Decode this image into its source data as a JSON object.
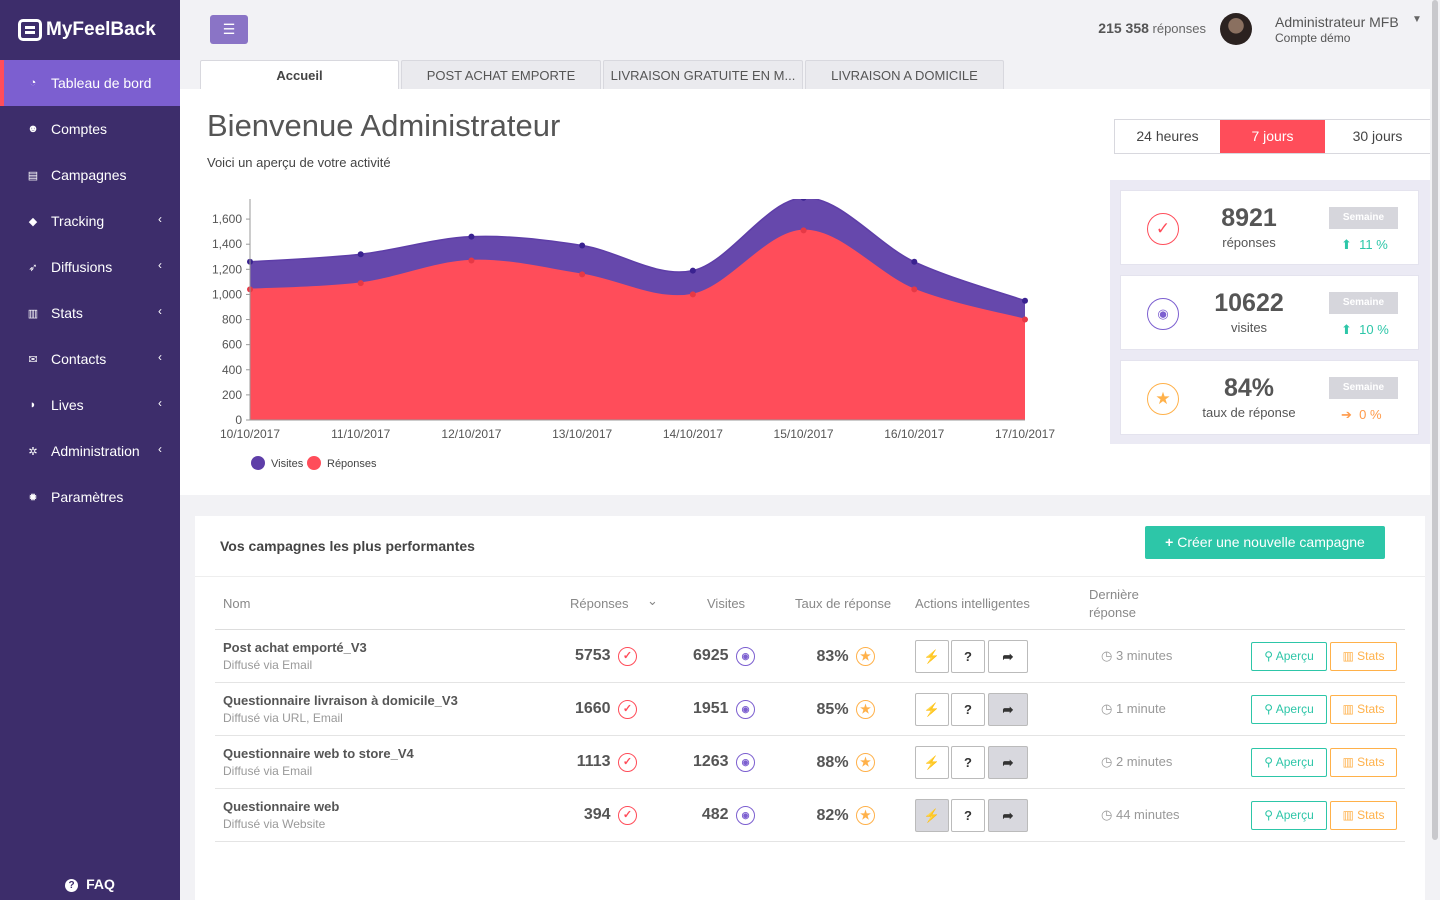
{
  "app": {
    "name": "MyFeelBack"
  },
  "sidebar": {
    "items": [
      {
        "label": "Tableau de bord",
        "icon": "dashboard-icon",
        "active": true,
        "submenu": false
      },
      {
        "label": "Comptes",
        "icon": "users-icon",
        "submenu": false
      },
      {
        "label": "Campagnes",
        "icon": "file-icon",
        "submenu": false
      },
      {
        "label": "Tracking",
        "icon": "tag-icon",
        "submenu": true
      },
      {
        "label": "Diffusions",
        "icon": "rocket-icon",
        "submenu": true
      },
      {
        "label": "Stats",
        "icon": "bar-chart-icon",
        "submenu": true
      },
      {
        "label": "Contacts",
        "icon": "envelope-icon",
        "submenu": true
      },
      {
        "label": "Lives",
        "icon": "rss-icon",
        "submenu": true
      },
      {
        "label": "Administration",
        "icon": "cogs-icon",
        "submenu": true
      },
      {
        "label": "Paramètres",
        "icon": "gear-icon",
        "submenu": false
      }
    ],
    "faq": "FAQ"
  },
  "header": {
    "responses_count": "215 358",
    "responses_label": "réponses",
    "user_name": "Administrateur MFB",
    "user_sub": "Compte démo"
  },
  "tabs": [
    "Accueil",
    "POST ACHAT EMPORTE",
    "LIVRAISON GRATUITE EN M...",
    "LIVRAISON A DOMICILE"
  ],
  "welcome": {
    "title": "Bienvenue Administrateur",
    "subtitle": "Voici un aperçu de votre activité"
  },
  "period": {
    "options": [
      "24 heures",
      "7 jours",
      "30 jours"
    ],
    "selected": "7 jours"
  },
  "stats": [
    {
      "value": "8921",
      "label": "réponses",
      "badge": "Semaine",
      "delta": "11 %",
      "trend": "up",
      "icon": "check-circle-icon",
      "color": "#ff4d5a"
    },
    {
      "value": "10622",
      "label": "visites",
      "badge": "Semaine",
      "delta": "10 %",
      "trend": "up",
      "icon": "eye-icon",
      "color": "#7c5fd0"
    },
    {
      "value": "84%",
      "label": "taux de réponse",
      "badge": "Semaine",
      "delta": "0 %",
      "trend": "flat",
      "icon": "star-icon",
      "color": "#ffb14a"
    }
  ],
  "chart_data": {
    "type": "area",
    "x": [
      "10/10/2017",
      "11/10/2017",
      "12/10/2017",
      "13/10/2017",
      "14/10/2017",
      "15/10/2017",
      "16/10/2017",
      "17/10/2017"
    ],
    "series": [
      {
        "name": "Visites",
        "color": "#5e3ea8",
        "values": [
          1260,
          1320,
          1460,
          1390,
          1190,
          1770,
          1260,
          950
        ]
      },
      {
        "name": "Réponses",
        "color": "#ff4d5a",
        "values": [
          1040,
          1090,
          1270,
          1160,
          1000,
          1510,
          1040,
          800
        ]
      }
    ],
    "yticks": [
      "0",
      "200",
      "400",
      "600",
      "800",
      "1,000",
      "1,200",
      "1,400",
      "1,600"
    ],
    "ylim": [
      0,
      1760
    ],
    "legend_position": "bottom-left"
  },
  "campaigns": {
    "title": "Vos campagnes les plus performantes",
    "create_label": "Créer une nouvelle campagne",
    "headers": {
      "name": "Nom",
      "responses": "Réponses",
      "visits": "Visites",
      "rate": "Taux de réponse",
      "actions": "Actions intelligentes",
      "last": "Dernière réponse"
    },
    "rows": [
      {
        "name": "Post achat emporté_V3",
        "via": "Diffusé via Email",
        "responses": "5753",
        "visits": "6925",
        "rate": "83%",
        "actions_on": [
          false,
          false,
          false
        ],
        "last": "3 minutes"
      },
      {
        "name": "Questionnaire livraison à domicile_V3",
        "via": "Diffusé via URL, Email",
        "responses": "1660",
        "visits": "1951",
        "rate": "85%",
        "actions_on": [
          false,
          false,
          true
        ],
        "last": "1 minute"
      },
      {
        "name": "Questionnaire web to store_V4",
        "via": "Diffusé via Email",
        "responses": "1113",
        "visits": "1263",
        "rate": "88%",
        "actions_on": [
          false,
          false,
          true
        ],
        "last": "2 minutes"
      },
      {
        "name": "Questionnaire web",
        "via": "Diffusé via Website",
        "responses": "394",
        "visits": "482",
        "rate": "82%",
        "actions_on": [
          true,
          false,
          true
        ],
        "last": "44 minutes"
      }
    ],
    "btn_preview": "Aperçu",
    "btn_stats": "Stats"
  }
}
